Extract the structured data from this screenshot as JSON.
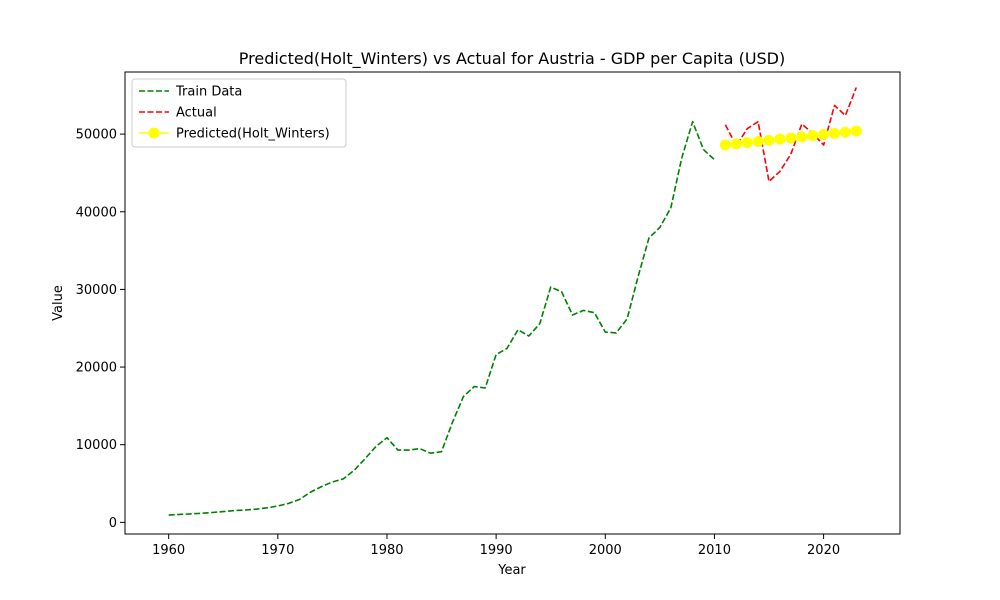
{
  "chart_data": {
    "type": "line",
    "title": "Predicted(Holt_Winters) vs Actual for Austria - GDP per Capita (USD)",
    "xlabel": "Year",
    "ylabel": "Value",
    "xlim": [
      1956,
      2027
    ],
    "ylim": [
      -1500,
      58000
    ],
    "xticks": [
      1960,
      1970,
      1980,
      1990,
      2000,
      2010,
      2020
    ],
    "yticks": [
      0,
      10000,
      20000,
      30000,
      40000,
      50000
    ],
    "grid": false,
    "legend_position": "top-left",
    "series": [
      {
        "name": "Train Data",
        "color": "#008000",
        "style": "dashed",
        "x": [
          1960,
          1961,
          1962,
          1963,
          1964,
          1965,
          1966,
          1967,
          1968,
          1969,
          1970,
          1971,
          1972,
          1973,
          1974,
          1975,
          1976,
          1977,
          1978,
          1979,
          1980,
          1981,
          1982,
          1983,
          1984,
          1985,
          1986,
          1987,
          1988,
          1989,
          1990,
          1991,
          1992,
          1993,
          1994,
          1995,
          1996,
          1997,
          1998,
          1999,
          2000,
          2001,
          2002,
          2003,
          2004,
          2005,
          2006,
          2007,
          2008,
          2009,
          2010
        ],
        "y": [
          935,
          1030,
          1090,
          1170,
          1270,
          1380,
          1510,
          1590,
          1700,
          1880,
          2100,
          2440,
          2950,
          3900,
          4600,
          5200,
          5600,
          6700,
          8200,
          9800,
          10900,
          9300,
          9300,
          9500,
          8900,
          9100,
          12900,
          16200,
          17500,
          17300,
          21600,
          22400,
          24800,
          24000,
          25600,
          30300,
          29700,
          26700,
          27300,
          27000,
          24500,
          24400,
          26200,
          31600,
          36600,
          38000,
          40500,
          46900,
          51600,
          48000,
          46700
        ]
      },
      {
        "name": "Actual",
        "color": "#ff0000",
        "style": "dashed",
        "x": [
          2011,
          2012,
          2013,
          2014,
          2015,
          2016,
          2017,
          2018,
          2019,
          2020,
          2021,
          2022,
          2023
        ],
        "y": [
          51200,
          48500,
          50700,
          51600,
          43900,
          45200,
          47400,
          51300,
          50100,
          48600,
          53700,
          52400,
          56000
        ]
      },
      {
        "name": "Predicted(Holt_Winters)",
        "color": "#ffff00",
        "style": "solid-markers",
        "x": [
          2011,
          2012,
          2013,
          2014,
          2015,
          2016,
          2017,
          2018,
          2019,
          2020,
          2021,
          2022,
          2023
        ],
        "y": [
          48600,
          48750,
          48900,
          49050,
          49200,
          49350,
          49500,
          49650,
          49800,
          49950,
          50100,
          50250,
          50400
        ]
      }
    ]
  }
}
